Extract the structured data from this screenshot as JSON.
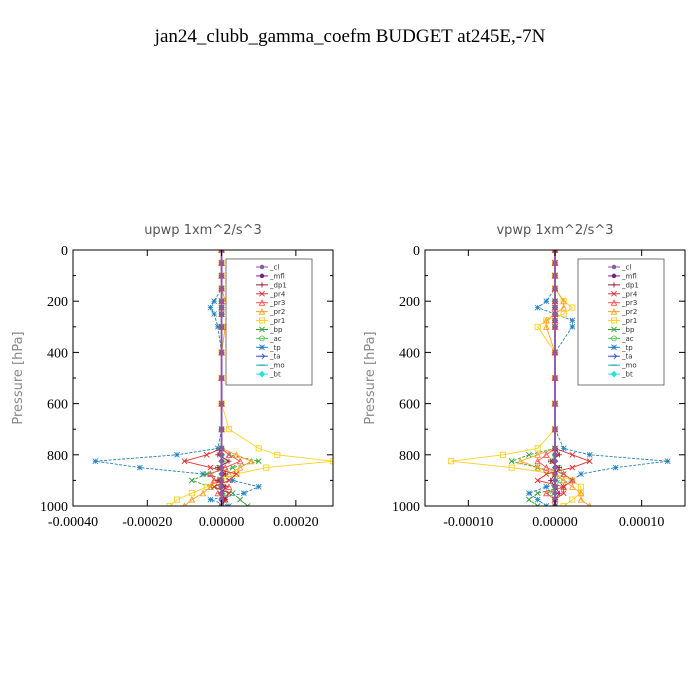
{
  "figure": {
    "title": "jan24_clubb_gamma_coefm  BUDGET at245E,-7N"
  },
  "chart_data": [
    {
      "type": "line",
      "title": "upwp   1xm^2/s^3",
      "ylabel": "Pressure [hPa]",
      "xlabel": "",
      "xlim": [
        -0.0004,
        0.0003
      ],
      "ylim": [
        1000,
        0
      ],
      "xticks": [
        "-0.00040",
        "-0.00020",
        "0.00000",
        "0.00020"
      ],
      "xtick_values": [
        -0.0004,
        -0.0002,
        0.0,
        0.0002
      ],
      "yticks": [
        "0",
        "200",
        "400",
        "600",
        "800",
        "1000"
      ],
      "ytick_values": [
        0,
        200,
        400,
        600,
        800,
        1000
      ],
      "legend_position": "top-right",
      "y": [
        0,
        50,
        100,
        150,
        200,
        225,
        250,
        300,
        400,
        500,
        600,
        700,
        775,
        800,
        825,
        850,
        875,
        900,
        925,
        950,
        975,
        1000
      ],
      "series": [
        {
          "name": "_cl",
          "color": "#8a5aa8",
          "marker": "dot",
          "values": [
            0,
            0,
            0,
            0,
            0,
            0,
            0,
            0,
            0,
            0,
            0,
            0,
            0,
            0,
            0,
            0,
            0,
            0,
            0,
            0,
            0,
            0
          ]
        },
        {
          "name": "_mfl",
          "color": "#7a1f8a",
          "marker": "dot",
          "values": [
            0,
            0,
            0,
            0,
            0,
            0,
            0,
            0,
            0,
            0,
            0,
            0,
            0,
            0,
            0,
            0,
            0,
            0,
            0,
            0,
            0,
            0
          ]
        },
        {
          "name": "_dp1",
          "color": "#a0203a",
          "marker": "plus",
          "values": [
            0,
            0,
            0,
            0,
            0,
            0,
            0,
            0,
            0,
            0,
            0,
            0,
            0,
            -1e-05,
            2e-05,
            -1e-05,
            1e-05,
            -1e-05,
            1e-05,
            0,
            1e-05,
            0
          ]
        },
        {
          "name": "_pr4",
          "color": "#e03030",
          "marker": "x",
          "values": [
            0,
            0,
            0,
            0,
            0,
            0,
            0,
            0,
            0,
            0,
            0,
            0,
            0,
            -4e-05,
            -0.0001,
            -3e-05,
            4e-05,
            2e-05,
            -2e-05,
            2e-05,
            1e-05,
            0
          ]
        },
        {
          "name": "_pr3",
          "color": "#ff5050",
          "marker": "tri",
          "values": [
            0,
            0,
            0,
            0,
            0,
            0,
            0,
            0,
            0,
            0,
            0,
            0,
            0,
            2e-05,
            5e-05,
            1e-05,
            -3e-05,
            -2e-05,
            2e-05,
            -1e-05,
            1e-05,
            0
          ]
        },
        {
          "name": "_pr2",
          "color": "#ffa020",
          "marker": "tri",
          "values": [
            0,
            0,
            0,
            0,
            1e-05,
            2e-05,
            2e-05,
            1e-05,
            0,
            0,
            0,
            0,
            0,
            4e-05,
            8e-05,
            5e-05,
            2e-05,
            -2e-05,
            -3e-05,
            -5e-05,
            -8e-05,
            -0.0001
          ]
        },
        {
          "name": "_pr1",
          "color": "#ffd020",
          "marker": "square",
          "values": [
            0,
            0,
            0,
            0,
            1e-05,
            2e-05,
            3e-05,
            1e-05,
            0,
            0,
            0,
            2e-05,
            0.0001,
            0.00015,
            0.0003,
            0.00012,
            4e-05,
            0,
            -4e-05,
            -8e-05,
            -0.00012,
            -0.00014
          ]
        },
        {
          "name": "_bp",
          "color": "#30a030",
          "marker": "x",
          "values": [
            0,
            0,
            0,
            0,
            0,
            0,
            0,
            0,
            0,
            0,
            0,
            0,
            0,
            2e-05,
            0.0001,
            3e-05,
            -4e-05,
            -8e-05,
            -3e-05,
            3e-05,
            5e-05,
            7e-05
          ]
        },
        {
          "name": "_ac",
          "color": "#50c850",
          "marker": "circle",
          "values": [
            0,
            0,
            0,
            0,
            0,
            0,
            0,
            0,
            0,
            0,
            0,
            0,
            0,
            0,
            1e-05,
            -1e-05,
            1e-05,
            0,
            -1e-05,
            1e-05,
            0,
            0
          ]
        },
        {
          "name": "_tp",
          "color": "#2080c0",
          "marker": "star",
          "values": [
            0,
            0,
            0,
            0,
            -2e-05,
            -3e-05,
            -2e-05,
            -1e-05,
            0,
            0,
            0,
            0,
            -1e-05,
            -0.00012,
            -0.00034,
            -0.00022,
            -5e-05,
            3e-05,
            0.0001,
            6e-05,
            -3e-05,
            2e-05
          ]
        },
        {
          "name": "_ta",
          "color": "#3050d0",
          "marker": "arrow",
          "values": [
            0,
            0,
            0,
            0,
            0,
            0,
            0,
            0,
            0,
            0,
            0,
            0,
            0,
            0,
            0,
            0,
            0,
            0,
            0,
            0,
            0,
            0
          ]
        },
        {
          "name": "_mo",
          "color": "#20a0c0",
          "marker": "dash",
          "values": [
            0,
            0,
            0,
            0,
            0,
            0,
            0,
            0,
            0,
            0,
            0,
            0,
            0,
            0,
            0,
            0,
            0,
            0,
            0,
            0,
            0,
            0
          ]
        },
        {
          "name": "_bt",
          "color": "#20e0e0",
          "marker": "diamond",
          "values": [
            0,
            0,
            0,
            0,
            0,
            0,
            0,
            0,
            0,
            0,
            0,
            0,
            0,
            0,
            0,
            0,
            0,
            0,
            0,
            0,
            0,
            0
          ]
        }
      ]
    },
    {
      "type": "line",
      "title": "vpwp   1xm^2/s^3",
      "ylabel": "Pressure [hPa]",
      "xlabel": "",
      "xlim": [
        -0.00015,
        0.00015
      ],
      "ylim": [
        1000,
        0
      ],
      "xticks": [
        "-0.00010",
        "0.00000",
        "0.00010"
      ],
      "xtick_values": [
        -0.0001,
        0.0,
        0.0001
      ],
      "yticks": [
        "0",
        "200",
        "400",
        "600",
        "800",
        "1000"
      ],
      "ytick_values": [
        0,
        200,
        400,
        600,
        800,
        1000
      ],
      "legend_position": "top-right",
      "y": [
        0,
        50,
        100,
        150,
        200,
        225,
        250,
        275,
        300,
        400,
        500,
        600,
        700,
        775,
        800,
        825,
        850,
        875,
        900,
        925,
        950,
        975,
        1000
      ],
      "series": [
        {
          "name": "_cl",
          "color": "#8a5aa8",
          "marker": "dot",
          "values": [
            0,
            0,
            0,
            0,
            0,
            0,
            0,
            0,
            0,
            0,
            0,
            0,
            0,
            0,
            0,
            0,
            0,
            0,
            0,
            0,
            0,
            0,
            0
          ]
        },
        {
          "name": "_mfl",
          "color": "#7a1f8a",
          "marker": "dot",
          "values": [
            0,
            0,
            0,
            0,
            0,
            0,
            0,
            0,
            0,
            0,
            0,
            0,
            0,
            0,
            0,
            0,
            0,
            0,
            0,
            0,
            0,
            0,
            0
          ]
        },
        {
          "name": "_dp1",
          "color": "#a0203a",
          "marker": "plus",
          "values": [
            0,
            0,
            0,
            0,
            0,
            0,
            0,
            0,
            0,
            0,
            0,
            0,
            0,
            0,
            5e-06,
            -5e-06,
            5e-06,
            0,
            -5e-06,
            0,
            5e-06,
            0,
            0
          ]
        },
        {
          "name": "_pr4",
          "color": "#e03030",
          "marker": "x",
          "values": [
            0,
            0,
            0,
            0,
            0,
            0,
            0,
            0,
            0,
            0,
            0,
            0,
            0,
            0,
            2e-05,
            4e-05,
            2e-05,
            -1e-05,
            -2e-05,
            1e-05,
            1e-05,
            0,
            0
          ]
        },
        {
          "name": "_pr3",
          "color": "#ff5050",
          "marker": "tri",
          "values": [
            0,
            0,
            0,
            0,
            0,
            0,
            0,
            0,
            0,
            0,
            0,
            0,
            0,
            0,
            -1e-05,
            -2e-05,
            -1e-05,
            1e-05,
            2e-05,
            1e-05,
            -1e-05,
            0,
            0
          ]
        },
        {
          "name": "_pr2",
          "color": "#ffa020",
          "marker": "tri",
          "values": [
            0,
            0,
            0,
            0,
            1e-05,
            1e-05,
            0,
            -1e-05,
            -1e-05,
            0,
            0,
            0,
            0,
            0,
            -2e-05,
            -4e-05,
            -2e-05,
            0,
            1e-05,
            2e-05,
            3e-05,
            3e-05,
            4e-05
          ]
        },
        {
          "name": "_pr1",
          "color": "#ffd020",
          "marker": "square",
          "values": [
            0,
            0,
            0,
            0,
            1e-05,
            2e-05,
            1e-05,
            -1e-05,
            -2e-05,
            0,
            0,
            0,
            0,
            -2e-05,
            -6e-05,
            -0.00012,
            -5e-05,
            0,
            2e-05,
            3e-05,
            3e-05,
            2e-05,
            1e-05
          ]
        },
        {
          "name": "_bp",
          "color": "#30a030",
          "marker": "x",
          "values": [
            0,
            0,
            0,
            0,
            0,
            0,
            0,
            0,
            0,
            0,
            0,
            0,
            0,
            0,
            -3e-05,
            -5e-05,
            -2e-05,
            1e-05,
            2e-05,
            1e-05,
            -2e-05,
            -3e-05,
            -2e-05
          ]
        },
        {
          "name": "_ac",
          "color": "#50c850",
          "marker": "circle",
          "values": [
            0,
            0,
            0,
            0,
            0,
            0,
            0,
            0,
            0,
            0,
            0,
            0,
            0,
            0,
            0,
            -5e-06,
            5e-06,
            0,
            5e-06,
            0,
            -5e-06,
            0,
            0
          ]
        },
        {
          "name": "_tp",
          "color": "#2080c0",
          "marker": "star",
          "values": [
            0,
            0,
            0,
            0,
            -1e-05,
            -2e-05,
            0,
            2e-05,
            2e-05,
            0,
            0,
            0,
            0,
            1e-05,
            4e-05,
            0.00013,
            7e-05,
            3e-05,
            2e-05,
            -1e-05,
            -3e-05,
            -2e-05,
            -1e-05
          ]
        },
        {
          "name": "_ta",
          "color": "#3050d0",
          "marker": "arrow",
          "values": [
            0,
            0,
            0,
            0,
            0,
            0,
            0,
            0,
            0,
            0,
            0,
            0,
            0,
            0,
            0,
            0,
            0,
            0,
            0,
            0,
            0,
            0,
            0
          ]
        },
        {
          "name": "_mo",
          "color": "#20a0c0",
          "marker": "dash",
          "values": [
            0,
            0,
            0,
            0,
            0,
            0,
            0,
            0,
            0,
            0,
            0,
            0,
            0,
            0,
            0,
            0,
            0,
            0,
            0,
            0,
            0,
            0,
            0
          ]
        },
        {
          "name": "_bt",
          "color": "#20e0e0",
          "marker": "diamond",
          "values": [
            0,
            0,
            0,
            0,
            0,
            0,
            0,
            0,
            0,
            0,
            0,
            0,
            0,
            0,
            0,
            0,
            0,
            0,
            0,
            0,
            0,
            0,
            0
          ]
        }
      ]
    }
  ]
}
